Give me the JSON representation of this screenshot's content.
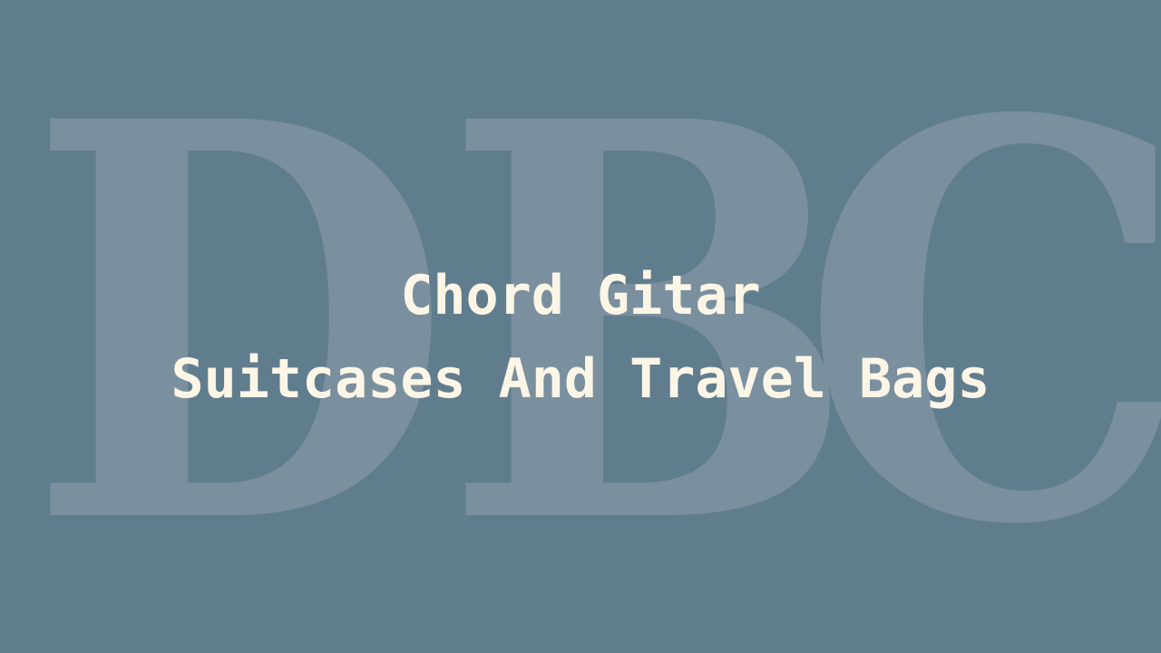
{
  "watermark": {
    "letters": [
      "D",
      "B",
      "C"
    ]
  },
  "title": {
    "line1": "Chord Gitar",
    "line2": "Suitcases And Travel Bags"
  },
  "colors": {
    "background": "#607d8e",
    "watermark": "#7a909f",
    "title_text": "#fdf6e6"
  }
}
